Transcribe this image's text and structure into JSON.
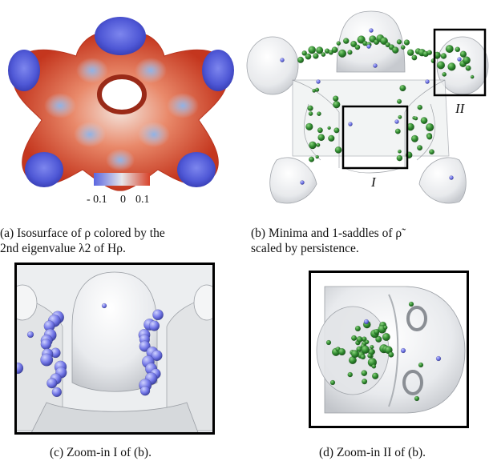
{
  "panel_a": {
    "colorbar": {
      "tick_labels": [
        "- 0.1",
        "0",
        "0.1"
      ],
      "colors": [
        "#5a66e0",
        "#e6e6ea",
        "#d8432a"
      ]
    },
    "caption_line1": "(a) Isosurface of ρ colored by the",
    "caption_line2": "2nd eigenvalue λ2 of Hρ."
  },
  "panel_b": {
    "label_box_1": "I",
    "label_box_2": "II",
    "caption_line1": "(b) Minima and 1-saddles of ρ̃",
    "caption_line2": "scaled by persistence."
  },
  "panel_c": {
    "caption": "(c) Zoom-in I of (b)."
  },
  "panel_d": {
    "caption": "(d) Zoom-in II of (b)."
  },
  "colors": {
    "minima": "#6f74e6",
    "saddles": "#2f8a2f",
    "surface": "#dcdfe2"
  }
}
